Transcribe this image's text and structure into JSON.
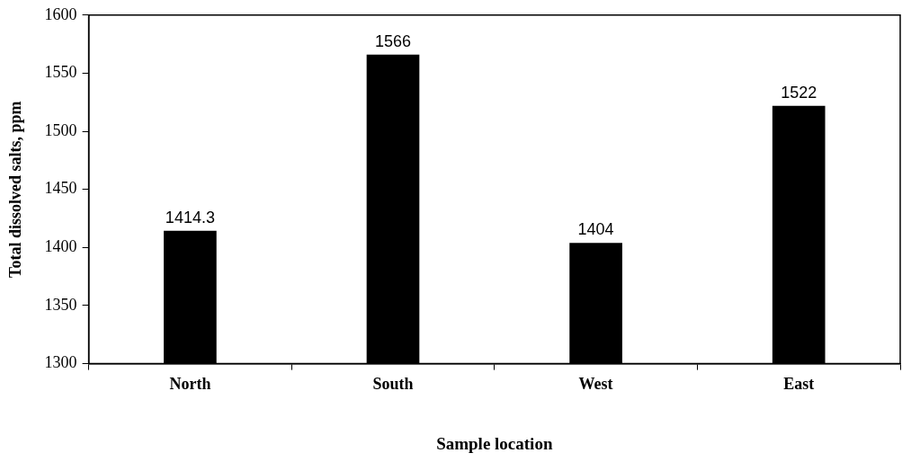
{
  "chart_data": {
    "type": "bar",
    "xlabel": "Sample location",
    "ylabel": "Total dissolved salts, ppm",
    "categories": [
      "North",
      "South",
      "West",
      "East"
    ],
    "values": [
      1414.3,
      1566,
      1404,
      1522
    ],
    "color": "#000000",
    "ylim": [
      1300,
      1600
    ],
    "yticks": [
      1300,
      1350,
      1400,
      1450,
      1500,
      1550,
      1600
    ],
    "data_labels": true,
    "legend": false
  }
}
